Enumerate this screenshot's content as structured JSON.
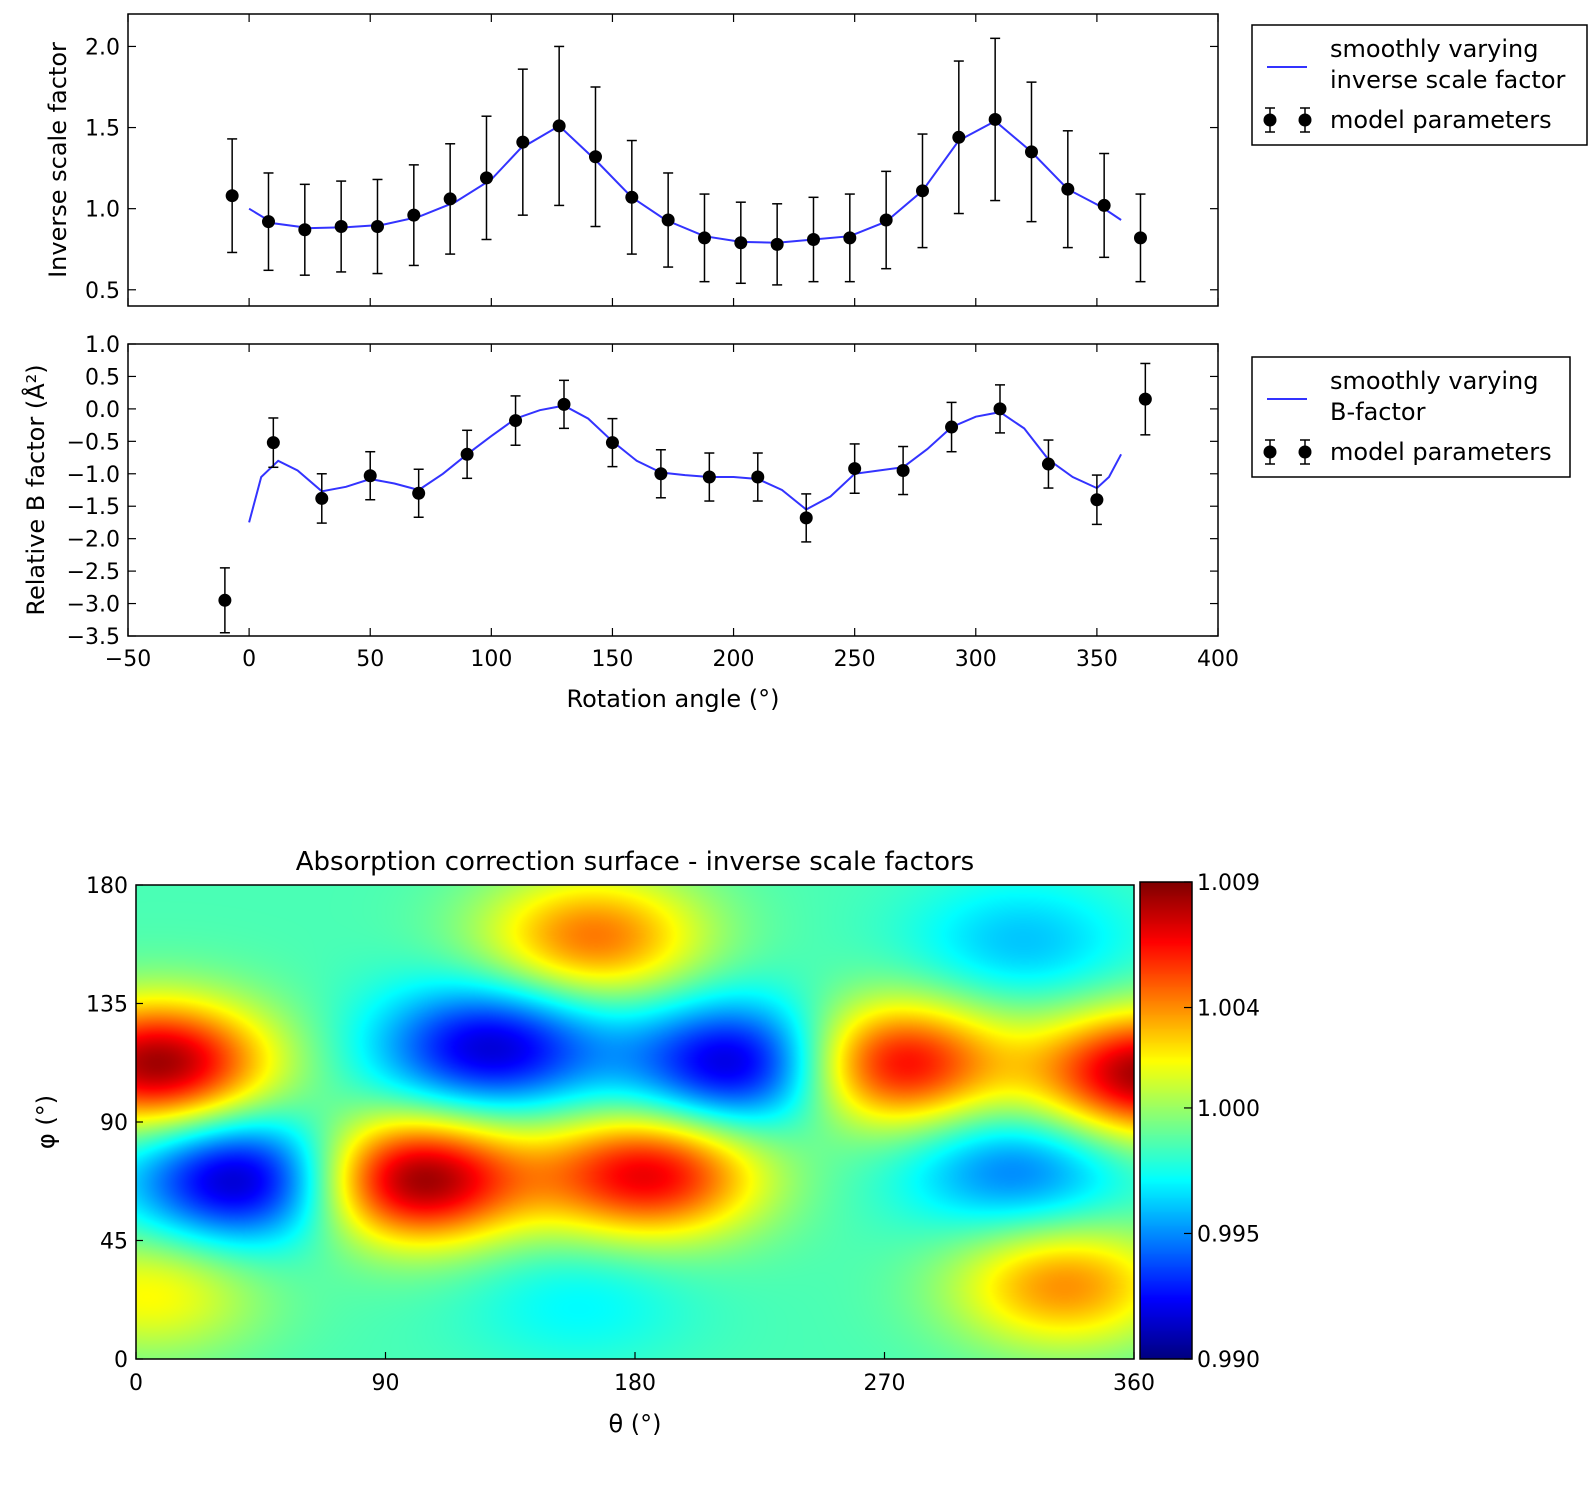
{
  "chart_data": [
    {
      "type": "line",
      "ylabel": "Inverse scale factor",
      "xlim": [
        -50,
        400
      ],
      "ylim": [
        0.4,
        2.2
      ],
      "yticks": [
        "0.5",
        "1.0",
        "1.5",
        "2.0"
      ],
      "legend": {
        "placement": "outside-right",
        "entries": [
          {
            "label": [
              "smoothly varying",
              "inverse scale factor"
            ],
            "kind": "line"
          },
          {
            "label": [
              "model parameters"
            ],
            "kind": "errorbar"
          }
        ]
      },
      "series": [
        {
          "name": "smoothly varying inverse scale factor",
          "kind": "line",
          "color": "#3333ff",
          "x": [
            0,
            10,
            25,
            40,
            55,
            70,
            85,
            100,
            112,
            128,
            143,
            158,
            172,
            188,
            203,
            218,
            233,
            248,
            263,
            278,
            293,
            308,
            323,
            338,
            352,
            360
          ],
          "y": [
            1.0,
            0.91,
            0.88,
            0.885,
            0.9,
            0.95,
            1.04,
            1.18,
            1.37,
            1.51,
            1.3,
            1.07,
            0.93,
            0.83,
            0.795,
            0.79,
            0.81,
            0.83,
            0.92,
            1.11,
            1.42,
            1.54,
            1.35,
            1.12,
            1.01,
            0.93
          ]
        },
        {
          "name": "model parameters",
          "kind": "errorbar",
          "color": "#000000",
          "x": [
            -7,
            8,
            23,
            38,
            53,
            68,
            83,
            98,
            113,
            128,
            143,
            158,
            173,
            188,
            203,
            218,
            233,
            248,
            263,
            278,
            293,
            308,
            323,
            338,
            353,
            368
          ],
          "y": [
            1.08,
            0.92,
            0.87,
            0.89,
            0.89,
            0.96,
            1.06,
            1.19,
            1.41,
            1.51,
            1.32,
            1.07,
            0.93,
            0.82,
            0.79,
            0.78,
            0.81,
            0.82,
            0.93,
            1.11,
            1.44,
            1.55,
            1.35,
            1.12,
            1.02,
            0.82
          ],
          "yerr": [
            0.35,
            0.3,
            0.28,
            0.28,
            0.29,
            0.31,
            0.34,
            0.38,
            0.45,
            0.49,
            0.43,
            0.35,
            0.29,
            0.27,
            0.25,
            0.25,
            0.26,
            0.27,
            0.3,
            0.35,
            0.47,
            0.5,
            0.43,
            0.36,
            0.32,
            0.27
          ]
        }
      ]
    },
    {
      "type": "line",
      "ylabel": "Relative B factor (Å²)",
      "xlabel": "Rotation angle (°)",
      "xlim": [
        -50,
        400
      ],
      "ylim": [
        -3.5,
        1.0
      ],
      "xticks": [
        "−50",
        "0",
        "50",
        "100",
        "150",
        "200",
        "250",
        "300",
        "350",
        "400"
      ],
      "yticks": [
        "−3.5",
        "−3.0",
        "−2.5",
        "−2.0",
        "−1.5",
        "−1.0",
        "−0.5",
        "0.0",
        "0.5",
        "1.0"
      ],
      "legend": {
        "placement": "outside-right",
        "entries": [
          {
            "label": [
              "smoothly varying",
              "B-factor"
            ],
            "kind": "line"
          },
          {
            "label": [
              "model parameters"
            ],
            "kind": "errorbar"
          }
        ]
      },
      "series": [
        {
          "name": "smoothly varying B-factor",
          "kind": "line",
          "color": "#3333ff",
          "x": [
            0,
            5,
            12,
            20,
            30,
            40,
            50,
            60,
            70,
            80,
            90,
            100,
            110,
            120,
            130,
            140,
            150,
            160,
            170,
            180,
            190,
            200,
            210,
            220,
            230,
            240,
            250,
            260,
            270,
            280,
            290,
            300,
            310,
            320,
            330,
            340,
            350,
            355,
            360
          ],
          "y": [
            -1.75,
            -1.05,
            -0.8,
            -0.95,
            -1.27,
            -1.2,
            -1.08,
            -1.15,
            -1.25,
            -1.0,
            -0.7,
            -0.42,
            -0.15,
            -0.02,
            0.05,
            -0.15,
            -0.5,
            -0.8,
            -0.98,
            -1.02,
            -1.05,
            -1.05,
            -1.08,
            -1.25,
            -1.55,
            -1.35,
            -1.0,
            -0.95,
            -0.9,
            -0.62,
            -0.28,
            -0.12,
            -0.05,
            -0.3,
            -0.78,
            -1.05,
            -1.22,
            -1.05,
            -0.7
          ]
        },
        {
          "name": "model parameters",
          "kind": "errorbar",
          "color": "#000000",
          "x": [
            -10,
            10,
            30,
            50,
            70,
            90,
            110,
            130,
            150,
            170,
            190,
            210,
            230,
            250,
            270,
            290,
            310,
            330,
            350,
            370
          ],
          "y": [
            -2.95,
            -0.52,
            -1.38,
            -1.03,
            -1.3,
            -0.7,
            -0.18,
            0.07,
            -0.52,
            -1.0,
            -1.05,
            -1.05,
            -1.68,
            -0.92,
            -0.95,
            -0.28,
            0.0,
            -0.85,
            -1.4,
            0.15
          ],
          "yerr": [
            0.5,
            0.38,
            0.38,
            0.37,
            0.37,
            0.37,
            0.38,
            0.37,
            0.37,
            0.37,
            0.37,
            0.37,
            0.37,
            0.38,
            0.37,
            0.38,
            0.37,
            0.37,
            0.38,
            0.55
          ]
        }
      ]
    },
    {
      "type": "heatmap",
      "title": "Absorption correction surface - inverse scale factors",
      "xlabel": "θ (°)",
      "ylabel": "φ (°)",
      "xlim": [
        0,
        360
      ],
      "ylim": [
        0,
        180
      ],
      "xticks": [
        "0",
        "90",
        "180",
        "270",
        "360"
      ],
      "yticks": [
        "0",
        "45",
        "90",
        "135",
        "180"
      ],
      "colormap": "jet",
      "colorbar": {
        "min": 0.99,
        "max": 1.009,
        "ticks": [
          {
            "value": 0.99,
            "label": "0.990"
          },
          {
            "value": 0.995,
            "label": "0.995"
          },
          {
            "value": 1.0,
            "label": "1.000"
          },
          {
            "value": 1.004,
            "label": "1.004"
          },
          {
            "value": 1.009,
            "label": "1.009"
          }
        ]
      },
      "baseline": 0.9985,
      "features": [
        {
          "theta": 8,
          "phi": 112,
          "value": 1.0085
        },
        {
          "theta": 365,
          "phi": 108,
          "value": 1.0085
        },
        {
          "theta": 40,
          "phi": 68,
          "value": 0.9905
        },
        {
          "theta": 100,
          "phi": 68,
          "value": 1.009
        },
        {
          "theta": 128,
          "phi": 118,
          "value": 0.9915
        },
        {
          "theta": 185,
          "phi": 70,
          "value": 1.007
        },
        {
          "theta": 220,
          "phi": 112,
          "value": 0.9905
        },
        {
          "theta": 272,
          "phi": 112,
          "value": 1.0075
        },
        {
          "theta": 165,
          "phi": 160,
          "value": 1.0045
        },
        {
          "theta": 318,
          "phi": 72,
          "value": 0.9945
        },
        {
          "theta": 335,
          "phi": 28,
          "value": 1.004
        },
        {
          "theta": 320,
          "phi": 158,
          "value": 0.996
        },
        {
          "theta": 160,
          "phi": 22,
          "value": 0.997
        },
        {
          "theta": 5,
          "phi": 25,
          "value": 1.002
        }
      ]
    }
  ]
}
